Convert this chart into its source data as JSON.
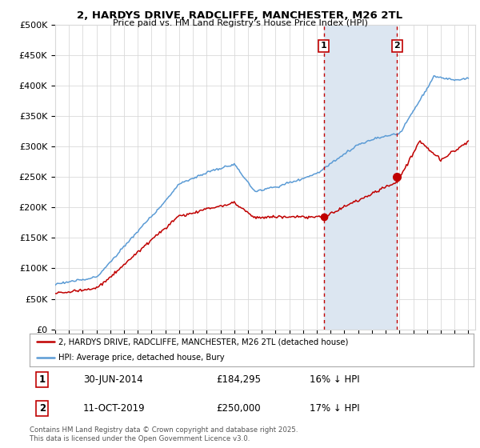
{
  "title_line1": "2, HARDYS DRIVE, RADCLIFFE, MANCHESTER, M26 2TL",
  "title_line2": "Price paid vs. HM Land Registry's House Price Index (HPI)",
  "ylim": [
    0,
    500000
  ],
  "yticks": [
    0,
    50000,
    100000,
    150000,
    200000,
    250000,
    300000,
    350000,
    400000,
    450000,
    500000
  ],
  "ytick_labels": [
    "£0",
    "£50K",
    "£100K",
    "£150K",
    "£200K",
    "£250K",
    "£300K",
    "£350K",
    "£400K",
    "£450K",
    "£500K"
  ],
  "hpi_color": "#5b9bd5",
  "price_color": "#c00000",
  "vline_color": "#c00000",
  "span_color": "#dce6f1",
  "year_start": 1995,
  "year_end": 2025,
  "purchase1_year": 2014.5,
  "purchase1_price": 184295,
  "purchase2_year": 2019.833,
  "purchase2_price": 250000,
  "legend_house": "2, HARDYS DRIVE, RADCLIFFE, MANCHESTER, M26 2TL (detached house)",
  "legend_hpi": "HPI: Average price, detached house, Bury",
  "table_row1": [
    "1",
    "30-JUN-2014",
    "£184,295",
    "16% ↓ HPI"
  ],
  "table_row2": [
    "2",
    "11-OCT-2019",
    "£250,000",
    "17% ↓ HPI"
  ],
  "footer": "Contains HM Land Registry data © Crown copyright and database right 2025.\nThis data is licensed under the Open Government Licence v3.0.",
  "background_color": "#ffffff",
  "grid_color": "#d9d9d9"
}
